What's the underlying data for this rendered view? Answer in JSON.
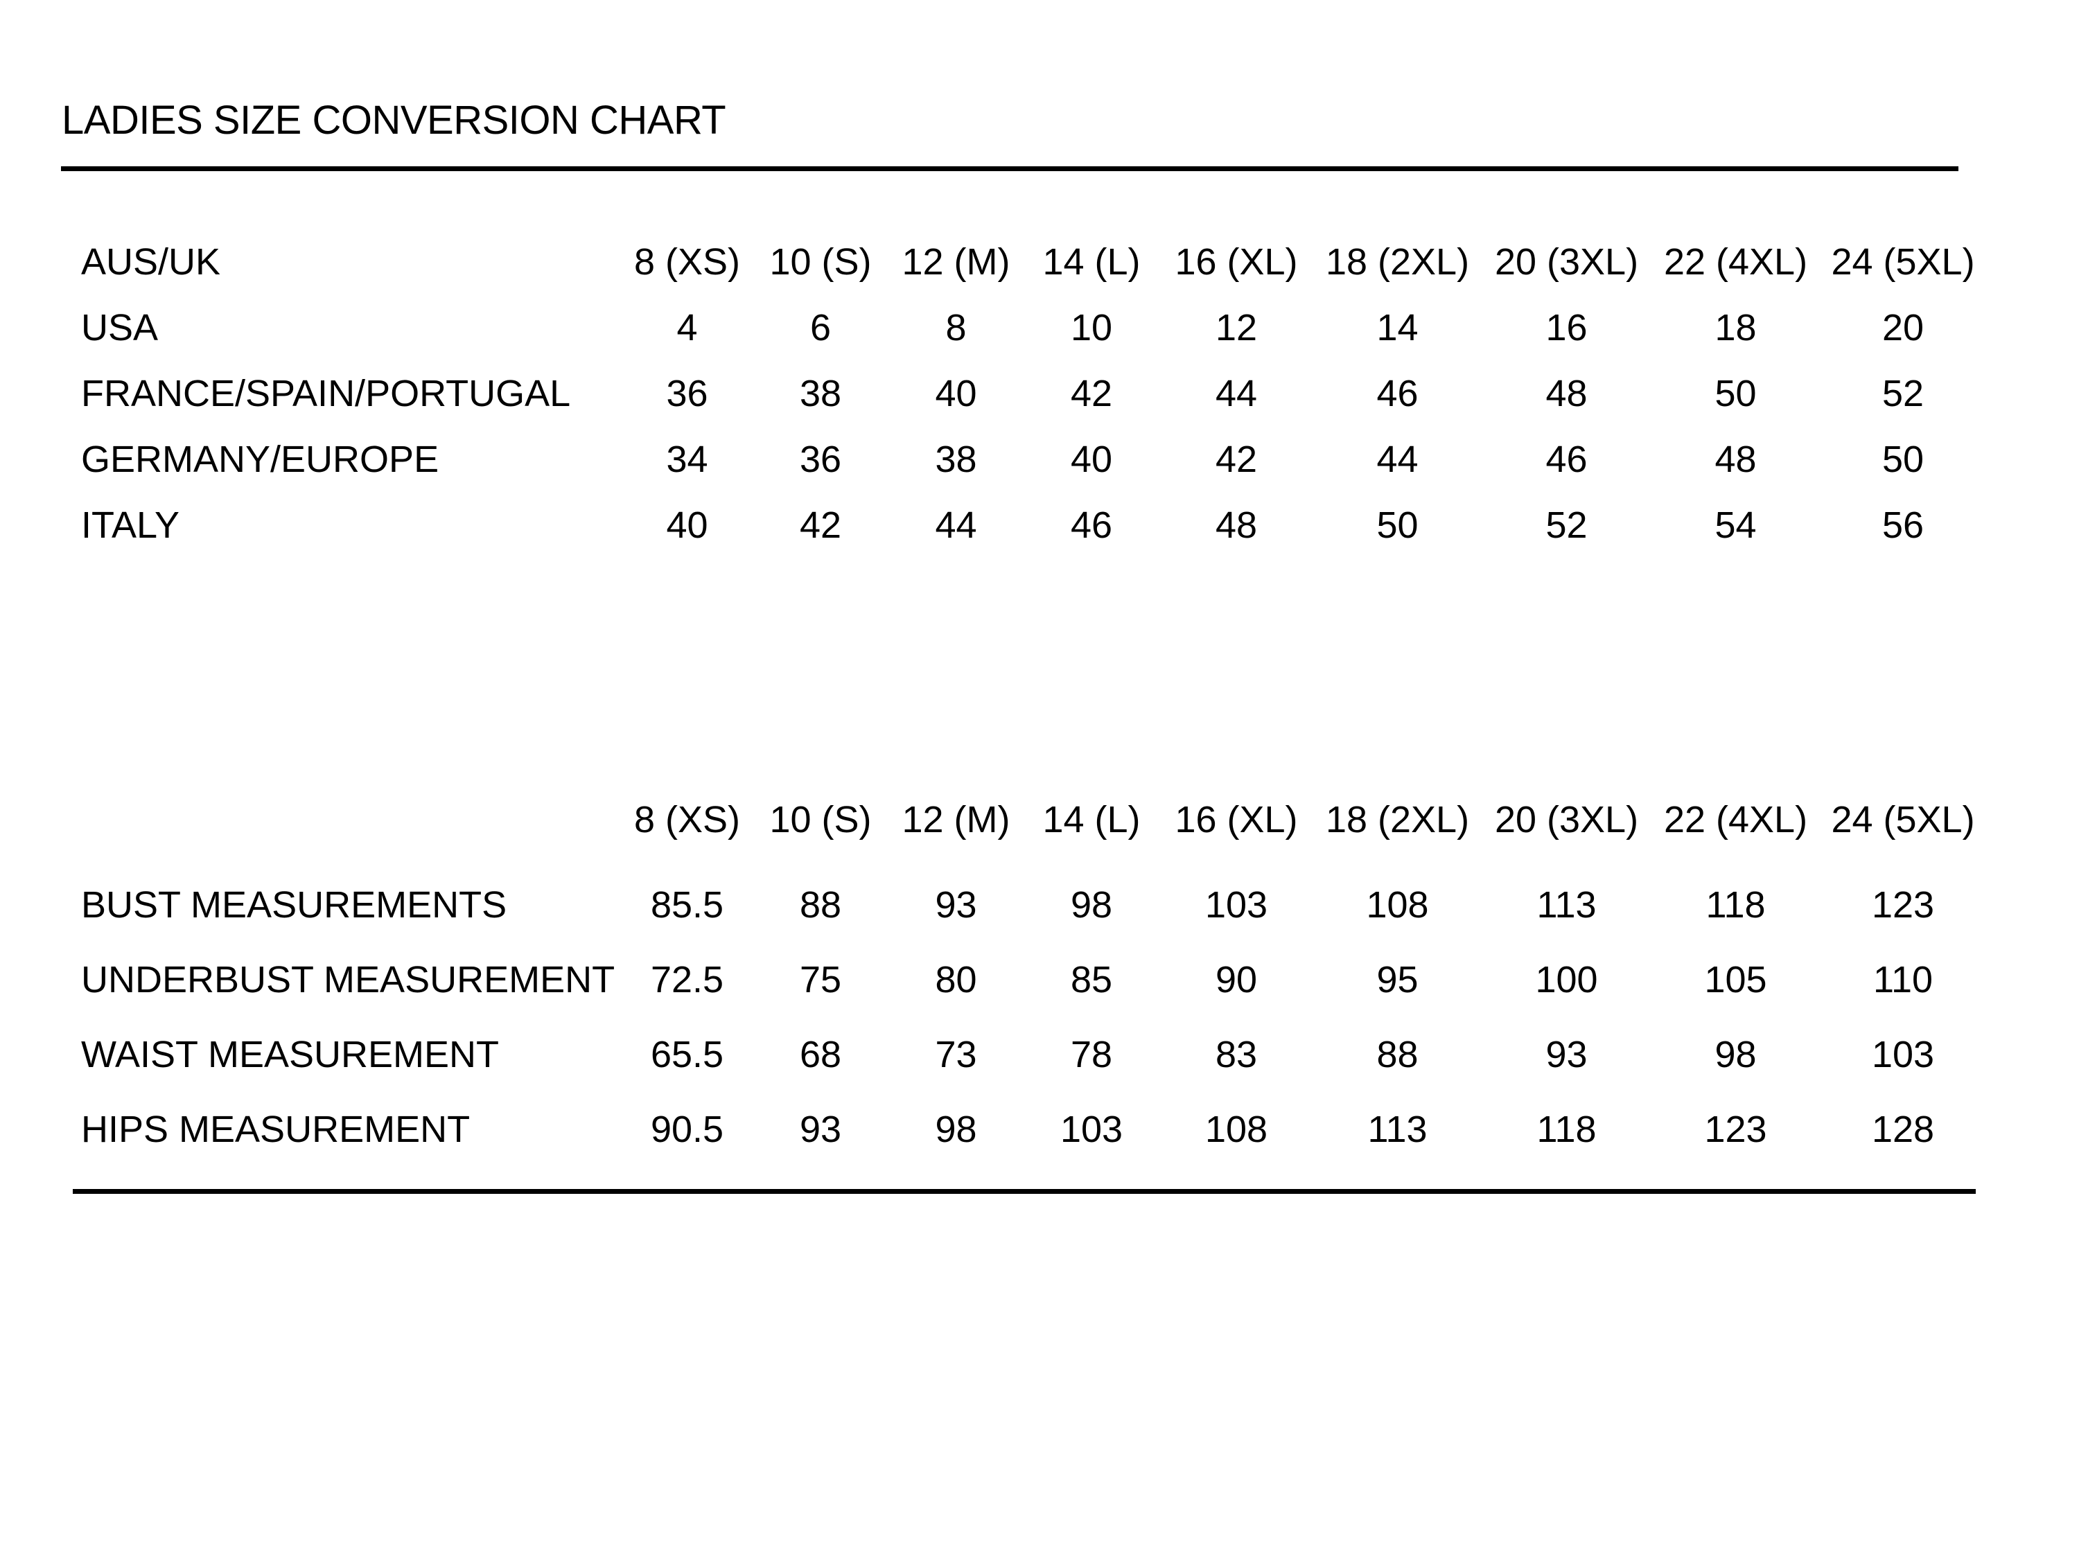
{
  "title": "LADIES SIZE CONVERSION CHART",
  "colors": {
    "text": "#000000",
    "background": "#ffffff",
    "divider": "#000000"
  },
  "tables": [
    {
      "name": "size-conversion",
      "header_label": "AUS/UK",
      "header_values": [
        "8 (XS)",
        "10 (S)",
        "12 (M)",
        "14 (L)",
        "16 (XL)",
        "18 (2XL)",
        "20 (3XL)",
        "22 (4XL)",
        "24 (5XL)"
      ],
      "rows": [
        {
          "label": "USA",
          "values": [
            "4",
            "6",
            "8",
            "10",
            "12",
            "14",
            "16",
            "18",
            "20"
          ]
        },
        {
          "label": "FRANCE/SPAIN/PORTUGAL",
          "values": [
            "36",
            "38",
            "40",
            "42",
            "44",
            "46",
            "48",
            "50",
            "52"
          ]
        },
        {
          "label": "GERMANY/EUROPE",
          "values": [
            "34",
            "36",
            "38",
            "40",
            "42",
            "44",
            "46",
            "48",
            "50"
          ]
        },
        {
          "label": "ITALY",
          "values": [
            "40",
            "42",
            "44",
            "46",
            "48",
            "50",
            "52",
            "54",
            "56"
          ]
        }
      ]
    },
    {
      "name": "body-measurements",
      "header_label": "",
      "header_values": [
        "8 (XS)",
        "10 (S)",
        "12 (M)",
        "14 (L)",
        "16 (XL)",
        "18 (2XL)",
        "20 (3XL)",
        "22 (4XL)",
        "24 (5XL)"
      ],
      "rows": [
        {
          "label": "BUST MEASUREMENTS",
          "values": [
            "85.5",
            "88",
            "93",
            "98",
            "103",
            "108",
            "113",
            "118",
            "123"
          ]
        },
        {
          "label": "UNDERBUST MEASUREMENT",
          "values": [
            "72.5",
            "75",
            "80",
            "85",
            "90",
            "95",
            "100",
            "105",
            "110"
          ]
        },
        {
          "label": "WAIST MEASUREMENT",
          "values": [
            "65.5",
            "68",
            "73",
            "78",
            "83",
            "88",
            "93",
            "98",
            "103"
          ]
        },
        {
          "label": "HIPS MEASUREMENT",
          "values": [
            "90.5",
            "93",
            "98",
            "103",
            "108",
            "113",
            "118",
            "123",
            "128"
          ]
        }
      ]
    }
  ]
}
